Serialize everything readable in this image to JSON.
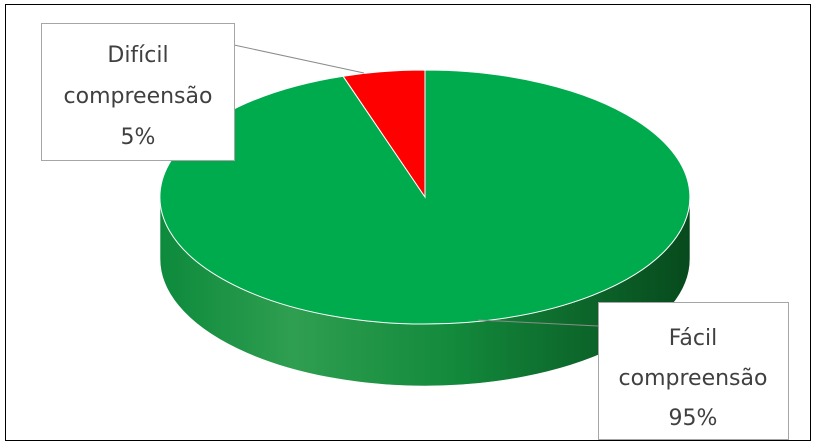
{
  "chart_data": {
    "type": "pie",
    "style": "3d",
    "slices": [
      {
        "label_line1": "Difícil",
        "label_line2": "compreensão",
        "percent_label": "5%",
        "value": 5,
        "color": "#ff0000"
      },
      {
        "label_line1": "Fácil",
        "label_line2": "compreensão",
        "percent_label": "95%",
        "value": 95,
        "color": "#00ab4e"
      }
    ],
    "side_color": "#0b7a35",
    "legend": "none",
    "data_labels": "callouts"
  }
}
